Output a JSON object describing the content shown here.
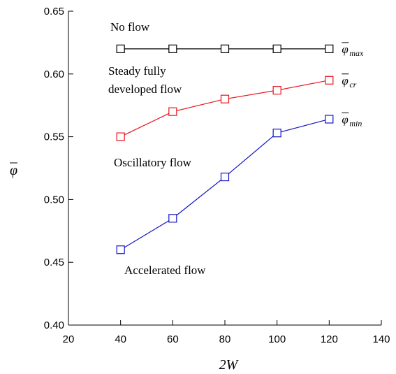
{
  "chart_data": {
    "type": "line",
    "xlabel": "2W",
    "ylabel": "φ",
    "xlim": [
      20,
      140
    ],
    "ylim": [
      0.4,
      0.65
    ],
    "xticks": [
      "20",
      "40",
      "60",
      "80",
      "100",
      "120",
      "140"
    ],
    "yticks": [
      "0.40",
      "0.45",
      "0.50",
      "0.55",
      "0.60",
      "0.65"
    ],
    "x": [
      40,
      60,
      80,
      100,
      120
    ],
    "series": [
      {
        "name": "φmax",
        "symbol": "φ",
        "subscript": "max",
        "color": "#000000",
        "values": [
          0.62,
          0.62,
          0.62,
          0.62,
          0.62
        ]
      },
      {
        "name": "φcr",
        "symbol": "φ",
        "subscript": "cr",
        "color": "#e8141b",
        "values": [
          0.55,
          0.57,
          0.58,
          0.587,
          0.595
        ]
      },
      {
        "name": "φmin",
        "symbol": "φ",
        "subscript": "min",
        "color": "#1414c8",
        "values": [
          0.46,
          0.485,
          0.518,
          0.553,
          0.564
        ]
      }
    ],
    "annotations": [
      {
        "lines": [
          "No flow"
        ]
      },
      {
        "lines": [
          "Steady fully",
          "developed flow"
        ]
      },
      {
        "lines": [
          "Oscillatory flow"
        ]
      },
      {
        "lines": [
          "Accelerated flow"
        ]
      }
    ]
  }
}
